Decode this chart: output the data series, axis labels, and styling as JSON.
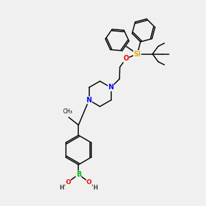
{
  "bg_color": "#f0f0f0",
  "atom_colors": {
    "B": "#00bb00",
    "N": "#0000ff",
    "O": "#ff0000",
    "Si": "#ddaa00",
    "C": "#000000",
    "H": "#444444"
  },
  "figsize": [
    3.0,
    3.0
  ],
  "dpi": 100,
  "lw": 1.1,
  "xlim": [
    0,
    10
  ],
  "ylim": [
    0,
    10
  ]
}
